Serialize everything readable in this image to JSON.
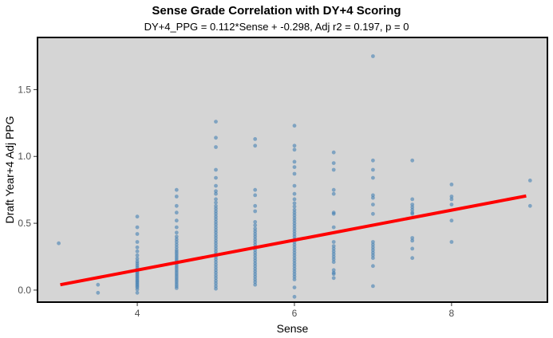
{
  "chart_data": {
    "type": "scatter",
    "title": "Sense Grade Correlation with DY+4 Scoring",
    "subtitle": "DY+4_PPG = 0.112*Sense + -0.298, Adj r2 = 0.197, p = 0",
    "xlabel": "Sense",
    "ylabel": "Draft Year+4 Adj PPG",
    "xlim": [
      2.73,
      9.22
    ],
    "ylim": [
      -0.09,
      1.89
    ],
    "x_ticks": [
      {
        "value": 4,
        "label": "4"
      },
      {
        "value": 6,
        "label": "6"
      },
      {
        "value": 8,
        "label": "8"
      }
    ],
    "y_ticks": [
      {
        "value": 0,
        "label": "0.0"
      },
      {
        "value": 0.5,
        "label": "0.5"
      },
      {
        "value": 1.0,
        "label": "1.0"
      },
      {
        "value": 1.5,
        "label": "1.5"
      }
    ],
    "grid": "off",
    "legend": "none",
    "panel_fill": "#d5d5d5",
    "panel_border_color": "#000000",
    "point_color": "#4682b4",
    "point_alpha": 0.6,
    "point_radius": 2.4,
    "regression": {
      "slope": 0.112,
      "intercept": -0.298,
      "x_start": 3.02,
      "x_end": 8.95,
      "color": "#ff0000",
      "width": 4
    },
    "axis_text_color": "#4d4d4d",
    "columns": [
      {
        "sense": 3.0,
        "ppg": [
          0.35
        ]
      },
      {
        "sense": 3.5,
        "ppg": [
          0.04,
          -0.02
        ]
      },
      {
        "sense": 4.0,
        "ppg": [
          0.55,
          0.47,
          0.42,
          0.36,
          0.32,
          0.29,
          0.26,
          0.235,
          0.215,
          0.2,
          0.185,
          0.17,
          0.155,
          0.14,
          0.13,
          0.12,
          0.11,
          0.1,
          0.09,
          0.08,
          0.07,
          0.06,
          0.05,
          0.04,
          0.03,
          0.02,
          0.005,
          -0.02
        ]
      },
      {
        "sense": 4.5,
        "ppg": [
          0.75,
          0.7,
          0.63,
          0.58,
          0.52,
          0.47,
          0.43,
          0.4,
          0.38,
          0.36,
          0.34,
          0.32,
          0.3,
          0.285,
          0.27,
          0.255,
          0.24,
          0.225,
          0.21,
          0.195,
          0.18,
          0.165,
          0.15,
          0.135,
          0.12,
          0.105,
          0.09,
          0.075,
          0.06,
          0.045,
          0.03,
          0.015
        ]
      },
      {
        "sense": 5.0,
        "ppg": [
          1.26,
          1.14,
          1.07,
          0.9,
          0.84,
          0.78,
          0.74,
          0.72,
          0.68,
          0.655,
          0.63,
          0.61,
          0.59,
          0.57,
          0.55,
          0.53,
          0.51,
          0.49,
          0.47,
          0.45,
          0.43,
          0.41,
          0.39,
          0.37,
          0.35,
          0.33,
          0.31,
          0.29,
          0.27,
          0.25,
          0.23,
          0.21,
          0.19,
          0.17,
          0.15,
          0.13,
          0.11,
          0.09,
          0.07,
          0.05,
          0.03,
          0.01
        ]
      },
      {
        "sense": 5.5,
        "ppg": [
          1.13,
          1.08,
          0.75,
          0.71,
          0.63,
          0.59,
          0.51,
          0.485,
          0.46,
          0.44,
          0.42,
          0.4,
          0.38,
          0.36,
          0.34,
          0.32,
          0.3,
          0.28,
          0.26,
          0.24,
          0.22,
          0.2,
          0.18,
          0.16,
          0.14,
          0.12,
          0.1,
          0.08,
          0.06,
          0.04
        ]
      },
      {
        "sense": 6.0,
        "ppg": [
          1.23,
          1.08,
          1.05,
          0.96,
          0.92,
          0.87,
          0.78,
          0.72,
          0.68,
          0.65,
          0.625,
          0.6,
          0.58,
          0.56,
          0.54,
          0.52,
          0.5,
          0.48,
          0.46,
          0.44,
          0.42,
          0.4,
          0.38,
          0.36,
          0.34,
          0.32,
          0.3,
          0.28,
          0.26,
          0.24,
          0.22,
          0.2,
          0.18,
          0.16,
          0.14,
          0.12,
          0.1,
          0.08,
          0.02,
          -0.05
        ]
      },
      {
        "sense": 6.5,
        "ppg": [
          1.03,
          0.95,
          0.9,
          0.75,
          0.72,
          0.58,
          0.57,
          0.47,
          0.36,
          0.33,
          0.31,
          0.29,
          0.27,
          0.25,
          0.23,
          0.21,
          0.15,
          0.13,
          0.12,
          0.09
        ]
      },
      {
        "sense": 7.0,
        "ppg": [
          1.75,
          0.97,
          0.9,
          0.84,
          0.71,
          0.69,
          0.64,
          0.57,
          0.36,
          0.34,
          0.32,
          0.3,
          0.28,
          0.26,
          0.24,
          0.18,
          0.03
        ]
      },
      {
        "sense": 7.5,
        "ppg": [
          0.97,
          0.68,
          0.64,
          0.62,
          0.6,
          0.58,
          0.57,
          0.39,
          0.37,
          0.31,
          0.24
        ]
      },
      {
        "sense": 8.0,
        "ppg": [
          0.79,
          0.7,
          0.68,
          0.64,
          0.52,
          0.36
        ]
      },
      {
        "sense": 9.0,
        "ppg": [
          0.82,
          0.63
        ]
      }
    ]
  }
}
